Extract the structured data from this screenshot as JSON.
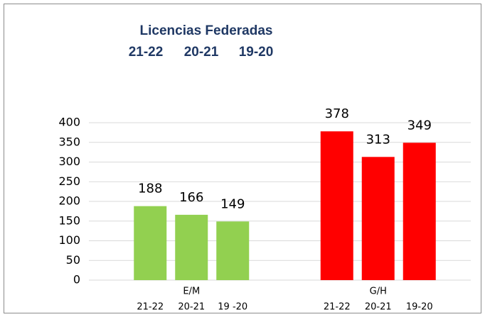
{
  "chart_data": {
    "type": "grouped_bar",
    "title": "Licencias Federadas",
    "subtitle": [
      "21-22",
      "20-21",
      "19-20"
    ],
    "categories": [
      "E/M",
      "G/H"
    ],
    "values": [
      [
        188,
        166,
        149
      ],
      [
        378,
        313,
        349
      ]
    ],
    "bar_labels": [
      [
        "21-22",
        "20-21",
        "19 -20"
      ],
      [
        "21-22",
        "20-21",
        "19-20"
      ]
    ],
    "colors": [
      "#92d050",
      "#ff0000"
    ],
    "ylim": [
      0,
      400
    ],
    "yticks": [
      0,
      50,
      100,
      150,
      200,
      250,
      300,
      350,
      400
    ],
    "grid": true
  }
}
